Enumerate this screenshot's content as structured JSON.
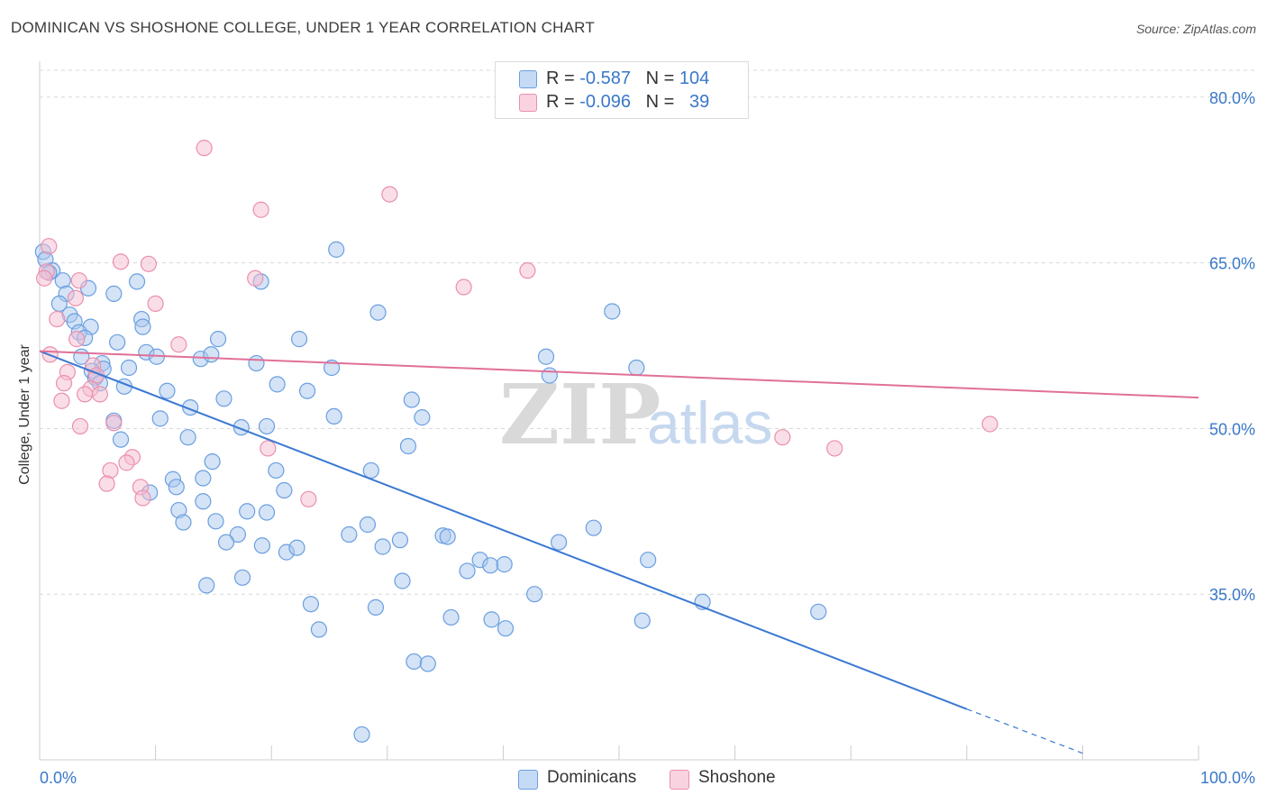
{
  "title": "DOMINICAN VS SHOSHONE COLLEGE, UNDER 1 YEAR CORRELATION CHART",
  "source": "Source: ZipAtlas.com",
  "watermark": {
    "zip": "ZIP",
    "atlas": "atlas"
  },
  "colors": {
    "blue_fill": "#a9c8ee",
    "blue_stroke": "#6a9fe0",
    "blue_line": "#3a78d2",
    "pink_fill": "#f5bdd0",
    "pink_stroke": "#eb8fae",
    "pink_line": "#e07098",
    "grid": "#d8d8d8",
    "axis_text": "#3a78c8"
  },
  "legend": {
    "rows": [
      {
        "r_label": "R = ",
        "r_value": "-0.587",
        "n_label": "N = ",
        "n_value": "104",
        "color": "#a9c8ee"
      },
      {
        "r_label": "R = ",
        "r_value": "-0.096",
        "n_label": "N = ",
        "n_value": "39",
        "color": "#f5bdd0"
      }
    ]
  },
  "bottom_legend": [
    {
      "label": "Dominicans",
      "color": "#a9c8ee"
    },
    {
      "label": "Shoshone",
      "color": "#f5bdd0"
    }
  ],
  "chart_data": {
    "type": "scatter",
    "title": "DOMINICAN VS SHOSHONE COLLEGE, UNDER 1 YEAR CORRELATION CHART",
    "xlabel": "",
    "ylabel": "College, Under 1 year",
    "xlim": [
      0,
      100
    ],
    "ylim": [
      20,
      83
    ],
    "x_tick_labels": [
      "0.0%",
      "100.0%"
    ],
    "y_ticks": [
      35,
      50,
      65,
      80
    ],
    "y_tick_labels": [
      "35.0%",
      "50.0%",
      "65.0%",
      "80.0%"
    ],
    "grid": true,
    "legend_position": "top-center",
    "series": [
      {
        "name": "Dominicans",
        "trendline": {
          "x": [
            0,
            80,
            90
          ],
          "y": [
            57.0,
            24.6,
            20.6
          ],
          "dashed_from_x": 80
        },
        "points": [
          [
            0.3,
            66.0
          ],
          [
            0.5,
            65.3
          ],
          [
            1.1,
            64.3
          ],
          [
            0.8,
            64.1
          ],
          [
            2.0,
            63.4
          ],
          [
            2.3,
            62.2
          ],
          [
            1.7,
            61.3
          ],
          [
            2.6,
            60.3
          ],
          [
            4.2,
            62.7
          ],
          [
            6.4,
            62.2
          ],
          [
            8.4,
            63.3
          ],
          [
            3.0,
            59.7
          ],
          [
            4.4,
            59.2
          ],
          [
            3.4,
            58.7
          ],
          [
            3.9,
            58.2
          ],
          [
            8.8,
            59.9
          ],
          [
            8.9,
            59.2
          ],
          [
            6.7,
            57.8
          ],
          [
            15.4,
            58.1
          ],
          [
            22.4,
            58.1
          ],
          [
            25.6,
            66.2
          ],
          [
            19.1,
            63.3
          ],
          [
            29.2,
            60.5
          ],
          [
            49.4,
            60.6
          ],
          [
            3.6,
            56.5
          ],
          [
            5.4,
            55.9
          ],
          [
            5.5,
            55.4
          ],
          [
            7.7,
            55.5
          ],
          [
            9.2,
            56.9
          ],
          [
            10.1,
            56.5
          ],
          [
            13.9,
            56.3
          ],
          [
            14.8,
            56.7
          ],
          [
            18.7,
            55.9
          ],
          [
            25.2,
            55.5
          ],
          [
            43.7,
            56.5
          ],
          [
            51.5,
            55.5
          ],
          [
            44.0,
            54.8
          ],
          [
            4.5,
            55.2
          ],
          [
            4.8,
            54.6
          ],
          [
            5.2,
            54.1
          ],
          [
            7.3,
            53.8
          ],
          [
            11.0,
            53.4
          ],
          [
            20.5,
            54.0
          ],
          [
            23.1,
            53.4
          ],
          [
            15.9,
            52.7
          ],
          [
            13.0,
            51.9
          ],
          [
            10.4,
            50.9
          ],
          [
            17.4,
            50.1
          ],
          [
            19.6,
            50.2
          ],
          [
            25.4,
            51.1
          ],
          [
            32.1,
            52.6
          ],
          [
            33.0,
            51.0
          ],
          [
            6.4,
            50.7
          ],
          [
            7.0,
            49.0
          ],
          [
            12.8,
            49.2
          ],
          [
            14.9,
            47.0
          ],
          [
            20.4,
            46.2
          ],
          [
            28.6,
            46.2
          ],
          [
            31.8,
            48.4
          ],
          [
            11.5,
            45.4
          ],
          [
            11.8,
            44.7
          ],
          [
            9.5,
            44.2
          ],
          [
            14.1,
            45.5
          ],
          [
            21.1,
            44.4
          ],
          [
            12.0,
            42.6
          ],
          [
            14.1,
            43.4
          ],
          [
            17.9,
            42.5
          ],
          [
            19.6,
            42.4
          ],
          [
            12.4,
            41.5
          ],
          [
            15.2,
            41.6
          ],
          [
            17.1,
            40.4
          ],
          [
            16.1,
            39.7
          ],
          [
            19.2,
            39.4
          ],
          [
            21.3,
            38.8
          ],
          [
            22.2,
            39.2
          ],
          [
            26.7,
            40.4
          ],
          [
            28.3,
            41.3
          ],
          [
            29.6,
            39.3
          ],
          [
            31.1,
            39.9
          ],
          [
            34.8,
            40.3
          ],
          [
            35.2,
            40.2
          ],
          [
            44.8,
            39.7
          ],
          [
            47.8,
            41.0
          ],
          [
            52.5,
            38.1
          ],
          [
            38.0,
            38.1
          ],
          [
            38.9,
            37.6
          ],
          [
            36.9,
            37.1
          ],
          [
            40.1,
            37.7
          ],
          [
            17.5,
            36.5
          ],
          [
            14.4,
            35.8
          ],
          [
            31.3,
            36.2
          ],
          [
            42.7,
            35.0
          ],
          [
            23.4,
            34.1
          ],
          [
            29.0,
            33.8
          ],
          [
            35.5,
            32.9
          ],
          [
            39.0,
            32.7
          ],
          [
            40.2,
            31.9
          ],
          [
            24.1,
            31.8
          ],
          [
            52.0,
            32.6
          ],
          [
            57.2,
            34.3
          ],
          [
            67.2,
            33.4
          ],
          [
            32.3,
            28.9
          ],
          [
            33.5,
            28.7
          ],
          [
            27.8,
            22.3
          ]
        ]
      },
      {
        "name": "Shoshone",
        "trendline": {
          "x": [
            0,
            100
          ],
          "y": [
            57.0,
            52.8
          ]
        },
        "points": [
          [
            0.8,
            66.5
          ],
          [
            0.6,
            64.2
          ],
          [
            0.4,
            63.6
          ],
          [
            3.4,
            63.4
          ],
          [
            7.0,
            65.1
          ],
          [
            9.4,
            64.9
          ],
          [
            14.2,
            75.4
          ],
          [
            19.1,
            69.8
          ],
          [
            18.6,
            63.6
          ],
          [
            30.2,
            71.2
          ],
          [
            36.6,
            62.8
          ],
          [
            42.1,
            64.3
          ],
          [
            10.0,
            61.3
          ],
          [
            3.1,
            61.8
          ],
          [
            1.5,
            59.9
          ],
          [
            12.0,
            57.6
          ],
          [
            3.2,
            58.1
          ],
          [
            0.9,
            56.7
          ],
          [
            2.4,
            55.1
          ],
          [
            4.6,
            55.7
          ],
          [
            4.9,
            54.8
          ],
          [
            2.1,
            54.1
          ],
          [
            4.4,
            53.6
          ],
          [
            5.2,
            53.1
          ],
          [
            3.9,
            53.1
          ],
          [
            1.9,
            52.5
          ],
          [
            6.4,
            50.5
          ],
          [
            3.5,
            50.2
          ],
          [
            8.0,
            47.4
          ],
          [
            7.5,
            46.9
          ],
          [
            6.1,
            46.2
          ],
          [
            19.7,
            48.2
          ],
          [
            64.1,
            49.2
          ],
          [
            68.6,
            48.2
          ],
          [
            82.0,
            50.4
          ],
          [
            5.8,
            45.0
          ],
          [
            8.7,
            44.7
          ],
          [
            8.9,
            43.7
          ],
          [
            23.2,
            43.6
          ]
        ]
      }
    ]
  }
}
